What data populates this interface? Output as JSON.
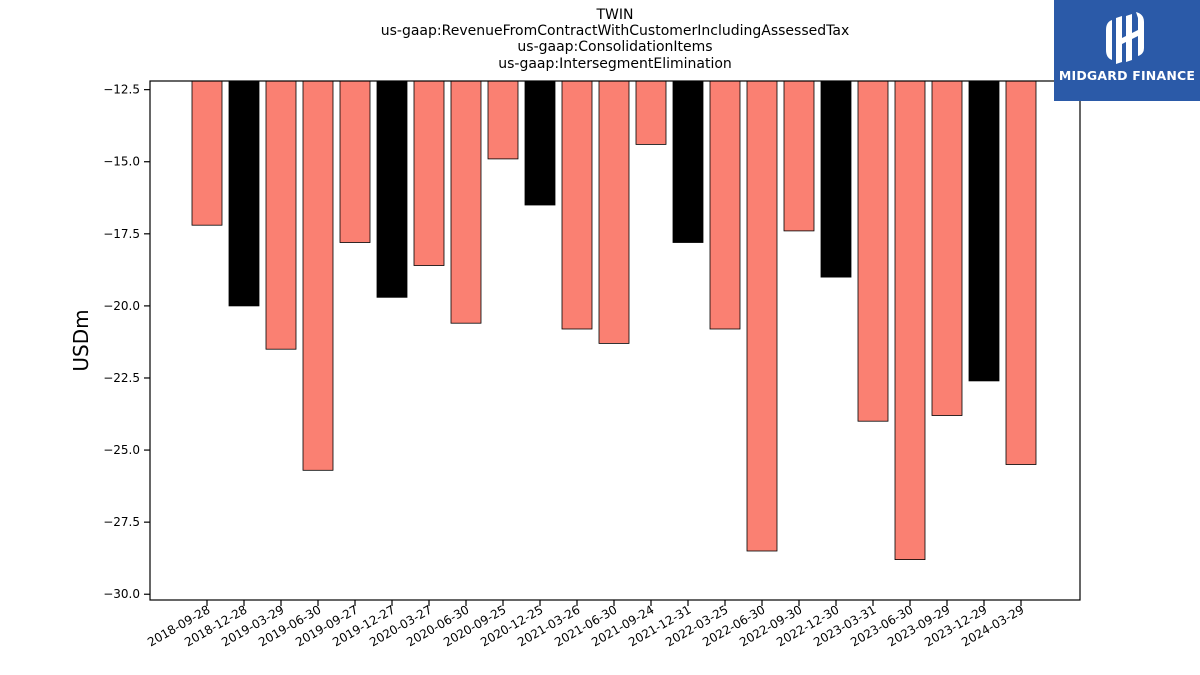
{
  "chart_data": {
    "type": "bar",
    "title_lines": [
      "TWIN",
      "us-gaap:RevenueFromContractWithCustomerIncludingAssessedTax",
      "us-gaap:ConsolidationItems",
      "us-gaap:IntersegmentElimination"
    ],
    "ylabel": "USDm",
    "xlabel": "",
    "ylim": [
      -30.2,
      -12.2
    ],
    "yticks": [
      -12.5,
      -15.0,
      -17.5,
      -20.0,
      -22.5,
      -25.0,
      -27.5,
      -30.0
    ],
    "ytick_labels": [
      "−12.5",
      "−15.0",
      "−17.5",
      "−20.0",
      "−22.5",
      "−25.0",
      "−27.5",
      "−30.0"
    ],
    "categories": [
      "2018-09-28",
      "2018-12-28",
      "2019-03-29",
      "2019-06-30",
      "2019-09-27",
      "2019-12-27",
      "2020-03-27",
      "2020-06-30",
      "2020-09-25",
      "2020-12-25",
      "2021-03-26",
      "2021-06-30",
      "2021-09-24",
      "2021-12-31",
      "2022-03-25",
      "2022-06-30",
      "2022-09-30",
      "2022-12-30",
      "2023-03-31",
      "2023-06-30",
      "2023-09-29",
      "2023-12-29",
      "2024-03-29"
    ],
    "values": [
      -17.2,
      -20.0,
      -21.5,
      -25.7,
      -17.8,
      -19.7,
      -18.6,
      -20.6,
      -14.9,
      -16.5,
      -20.8,
      -21.3,
      -14.4,
      -17.8,
      -20.8,
      -28.5,
      -17.4,
      -19.0,
      -24.0,
      -28.8,
      -23.8,
      -22.6,
      -25.5
    ],
    "bar_colors": [
      "#fa8072",
      "#000000",
      "#fa8072",
      "#fa8072",
      "#fa8072",
      "#000000",
      "#fa8072",
      "#fa8072",
      "#fa8072",
      "#000000",
      "#fa8072",
      "#fa8072",
      "#fa8072",
      "#000000",
      "#fa8072",
      "#fa8072",
      "#fa8072",
      "#000000",
      "#fa8072",
      "#fa8072",
      "#fa8072",
      "#000000",
      "#fa8072"
    ],
    "grid": false,
    "legend": "none"
  },
  "logo": {
    "text": "MIDGARD FINANCE",
    "background": "#2b5aa8",
    "icon": "midgard-mark-icon"
  }
}
